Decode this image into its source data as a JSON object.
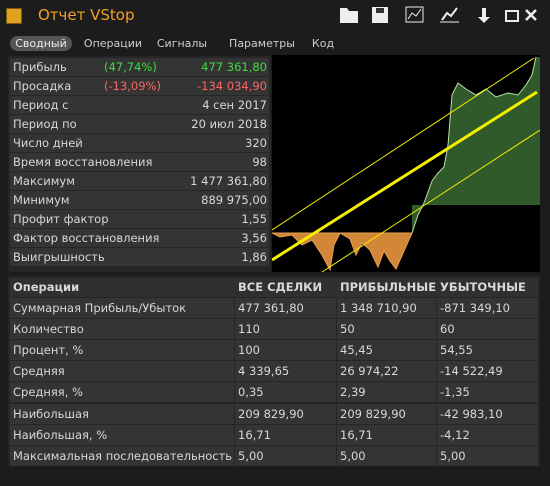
{
  "header": {
    "title": "Отчет VStop"
  },
  "tabs": [
    "Сводный",
    "Операции",
    "Сигналы",
    "Параметры",
    "Код"
  ],
  "summary": {
    "rows": [
      {
        "label": "Прибыль",
        "note": "(47,74%)",
        "value": "477 361,80"
      },
      {
        "label": "Просадка",
        "note": "(-13,09%)",
        "value": "-134 034,90"
      },
      {
        "label": "Период с",
        "value": "4 сен 2017"
      },
      {
        "label": "Период по",
        "value": "20 июл 2018"
      },
      {
        "label": "Число дней",
        "value": "320"
      },
      {
        "label": "Время восстановления",
        "value": "98"
      },
      {
        "label": "Максимум",
        "value": "1 477 361,80"
      },
      {
        "label": "Минимум",
        "value": "889 975,00"
      },
      {
        "label": "Профит фактор",
        "value": "1,55"
      },
      {
        "label": "Фактор восстановления",
        "value": "3,56"
      },
      {
        "label": "Выигрышность",
        "value": "1,86"
      }
    ]
  },
  "table": {
    "header": [
      "Операции",
      "ВСЕ СДЕЛКИ",
      "ПРИБЫЛЬНЫЕ",
      "УБЫТОЧНЫЕ"
    ],
    "rows": [
      [
        "Суммарная Прибыль/Убыток",
        "477 361,80",
        "1 348 710,90",
        "-871 349,10"
      ],
      [
        "Количество",
        "110",
        "50",
        "60"
      ],
      [
        "Процент, %",
        "100",
        "45,45",
        "54,55"
      ],
      [
        "Средняя",
        "4 339,65",
        "26 974,22",
        "-14 522,49"
      ],
      [
        "Средняя, %",
        "0,35",
        "2,39",
        "-1,35"
      ],
      [
        "Наибольшая",
        "209 829,90",
        "209 829,90",
        "-42 983,10"
      ],
      [
        "Наибольшая, %",
        "16,71",
        "16,71",
        "-4,12"
      ],
      [
        "Максимальная последовательность",
        "5,00",
        "5,00",
        "5,00"
      ]
    ]
  }
}
